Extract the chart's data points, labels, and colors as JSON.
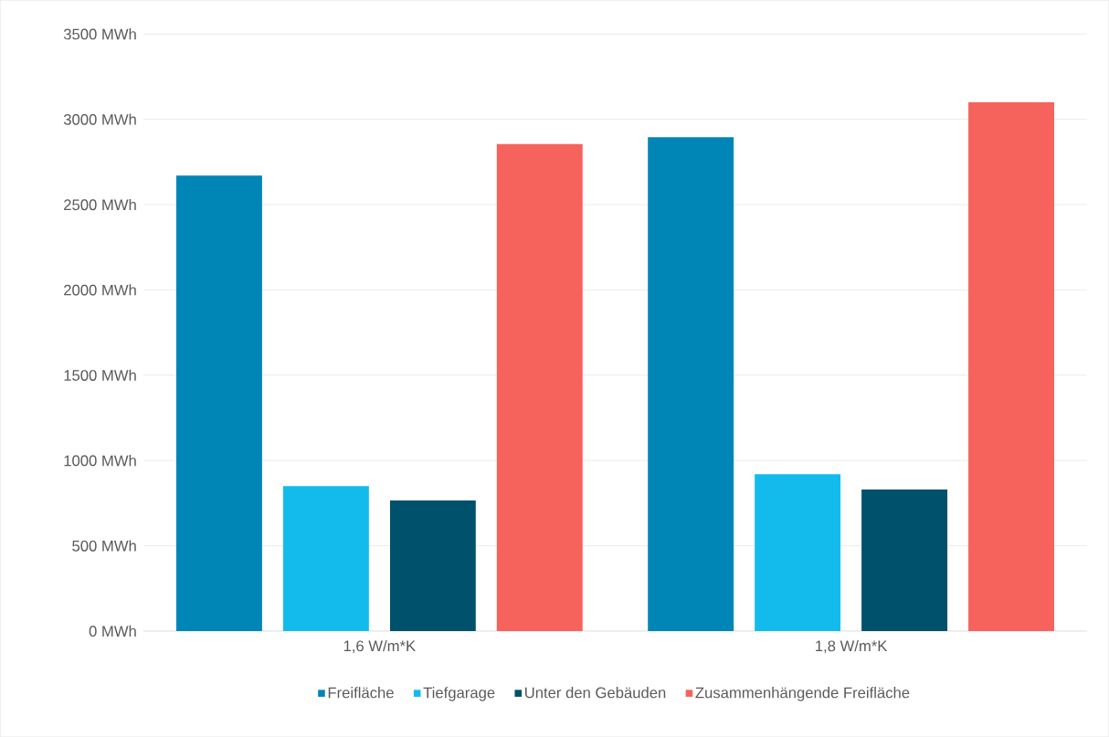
{
  "chart_data": {
    "type": "bar",
    "categories": [
      "1,6 W/m*K",
      "1,8 W/m*K"
    ],
    "series": [
      {
        "name": "Freifläche",
        "color": "#0085b7",
        "values": [
          2670,
          2895
        ]
      },
      {
        "name": "Tiefgarage",
        "color": "#13bbec",
        "values": [
          850,
          920
        ]
      },
      {
        "name": "Unter den Gebäuden",
        "color": "#00516b",
        "values": [
          765,
          830
        ]
      },
      {
        "name": "Zusammenhängende Freifläche",
        "color": "#f6635c",
        "values": [
          2855,
          3100
        ]
      }
    ],
    "ylim": [
      0,
      3500
    ],
    "yticks": [
      {
        "value": 0,
        "label": "0 MWh"
      },
      {
        "value": 500,
        "label": "500 MWh"
      },
      {
        "value": 1000,
        "label": "1000 MWh"
      },
      {
        "value": 1500,
        "label": "1500 MWh"
      },
      {
        "value": 2000,
        "label": "2000 MWh"
      },
      {
        "value": 2500,
        "label": "2500 MWh"
      },
      {
        "value": 3000,
        "label": "3000 MWh"
      },
      {
        "value": 3500,
        "label": "3500 MWh"
      }
    ],
    "grid": "y",
    "legend": "bottom"
  }
}
